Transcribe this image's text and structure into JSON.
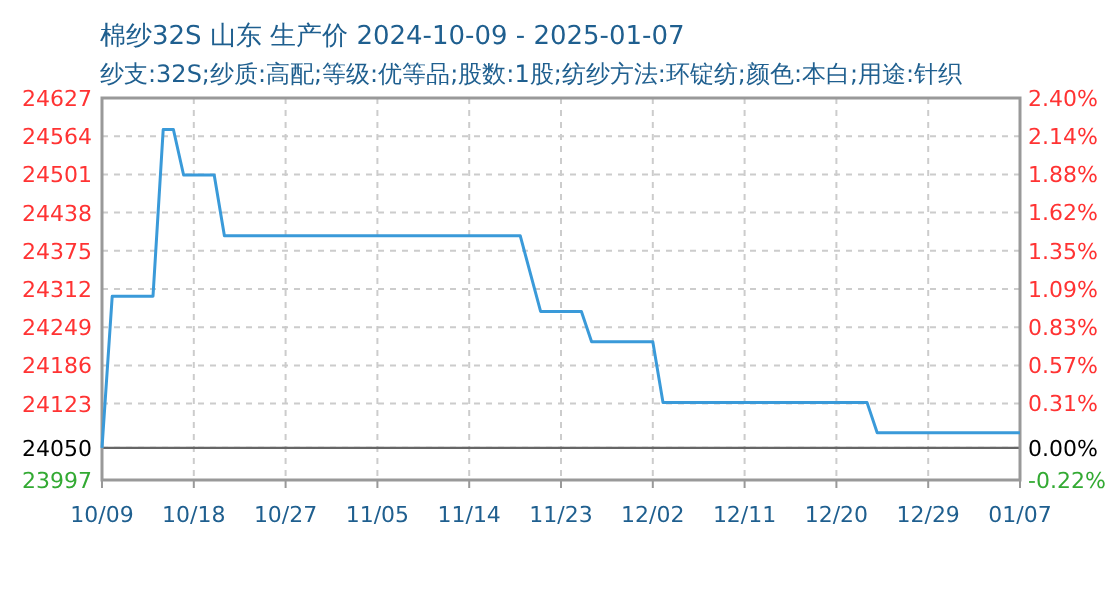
{
  "chart_data": {
    "type": "line",
    "title": "棉纱32S 山东 生产价 2024-10-09 - 2025-01-07",
    "subtitle": "纱支:32S;纱质:高配;等级:优等品;股数:1股;纺纱方法:环锭纺;颜色:本白;用途:针织",
    "xlim": [
      "2024-10-09",
      "2025-01-07"
    ],
    "xticks": [
      {
        "value": "2024-10-09",
        "label": "10/09"
      },
      {
        "value": "2024-10-18",
        "label": "10/18"
      },
      {
        "value": "2024-10-27",
        "label": "10/27"
      },
      {
        "value": "2024-11-05",
        "label": "11/05"
      },
      {
        "value": "2024-11-14",
        "label": "11/14"
      },
      {
        "value": "2024-11-23",
        "label": "11/23"
      },
      {
        "value": "2024-12-02",
        "label": "12/02"
      },
      {
        "value": "2024-12-11",
        "label": "12/11"
      },
      {
        "value": "2024-12-20",
        "label": "12/20"
      },
      {
        "value": "2024-12-29",
        "label": "12/29"
      },
      {
        "value": "2025-01-07",
        "label": "01/07"
      }
    ],
    "ylim": [
      23997,
      24627
    ],
    "yticks": [
      23997,
      24050,
      24123,
      24186,
      24249,
      24312,
      24375,
      24438,
      24501,
      24564,
      24627
    ],
    "y2lim": [
      -0.22,
      2.4
    ],
    "y2ticks": [
      {
        "value": -0.22,
        "label": "-0.22%"
      },
      {
        "value": 0,
        "label": "0.00%"
      },
      {
        "value": 0.31,
        "label": "0.31%"
      },
      {
        "value": 0.57,
        "label": "0.57%"
      },
      {
        "value": 0.83,
        "label": "0.83%"
      },
      {
        "value": 1.09,
        "label": "1.09%"
      },
      {
        "value": 1.35,
        "label": "1.35%"
      },
      {
        "value": 1.62,
        "label": "1.62%"
      },
      {
        "value": 1.88,
        "label": "1.88%"
      },
      {
        "value": 2.14,
        "label": "2.14%"
      },
      {
        "value": 2.4,
        "label": "2.40%"
      }
    ],
    "grid": true,
    "ref_lines": [
      {
        "axis": "y",
        "value": 24050,
        "color": "#666666"
      }
    ],
    "series": [
      {
        "color": "#3a9ad9",
        "x": [
          "2024-10-09",
          "2024-10-10",
          "2024-10-14",
          "2024-10-15",
          "2024-10-16",
          "2024-10-17",
          "2024-10-20",
          "2024-10-21",
          "2024-11-19",
          "2024-11-21",
          "2024-11-25",
          "2024-11-26",
          "2024-12-02",
          "2024-12-03",
          "2024-12-23",
          "2024-12-24",
          "2025-01-07"
        ],
        "values": [
          24050,
          24300,
          24300,
          24575,
          24575,
          24500,
          24500,
          24400,
          24400,
          24275,
          24275,
          24225,
          24225,
          24125,
          24125,
          24075,
          24075
        ]
      }
    ]
  }
}
